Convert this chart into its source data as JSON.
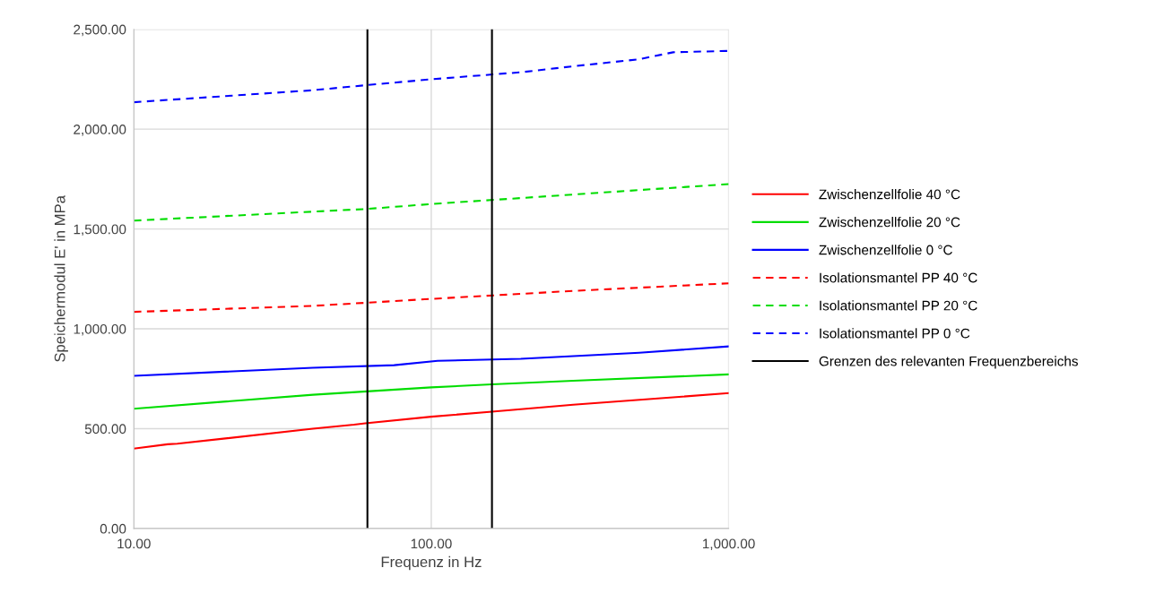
{
  "chart_data": {
    "type": "line",
    "xlabel": "Frequenz in Hz",
    "ylabel": "Speichermodul E' in MPa",
    "log": "x",
    "grid": true,
    "legend": "right",
    "xlim": [
      10,
      1000
    ],
    "xticks": [
      {
        "value": 10,
        "label": "10.00"
      },
      {
        "value": 100,
        "label": "100.00"
      },
      {
        "value": 1000,
        "label": "1,000.00"
      }
    ],
    "ylim": [
      0,
      2500
    ],
    "yticks": [
      {
        "value": 0,
        "label": "0.00"
      },
      {
        "value": 500,
        "label": "500.00"
      },
      {
        "value": 1000,
        "label": "1,000.00"
      },
      {
        "value": 1500,
        "label": "1,500.00"
      },
      {
        "value": 2000,
        "label": "2,000.00"
      },
      {
        "value": 2500,
        "label": "2,500.00"
      }
    ],
    "series": [
      {
        "name": "Zwischenzellfolie 40 °C",
        "color": "#ff0000",
        "line_style": "solid",
        "x": [
          10,
          13,
          14,
          20,
          40,
          55,
          60,
          100,
          160,
          300,
          1000
        ],
        "values": [
          400,
          422,
          425,
          450,
          500,
          520,
          527,
          560,
          585,
          620,
          678
        ]
      },
      {
        "name": "Zwischenzellfolie 20 °C",
        "color": "#00dd00",
        "line_style": "solid",
        "x": [
          10,
          20,
          40,
          100,
          160,
          300,
          1000
        ],
        "values": [
          600,
          635,
          670,
          707,
          722,
          740,
          772
        ]
      },
      {
        "name": "Zwischenzellfolie 0 °C",
        "color": "#0000ff",
        "line_style": "solid",
        "x": [
          10,
          40,
          75,
          105,
          200,
          500,
          1000
        ],
        "values": [
          765,
          805,
          818,
          840,
          850,
          880,
          912
        ]
      },
      {
        "name": "Isolationsmantel PP 40 °C",
        "color": "#ff0000",
        "line_style": "dashed",
        "x": [
          10,
          40,
          100,
          300,
          1000
        ],
        "values": [
          1085,
          1115,
          1150,
          1190,
          1228
        ]
      },
      {
        "name": "Isolationsmantel PP 20 °C",
        "color": "#00dd00",
        "line_style": "dashed",
        "x": [
          10,
          60,
          100,
          1000
        ],
        "values": [
          1542,
          1600,
          1625,
          1725
        ]
      },
      {
        "name": "Isolationsmantel PP 0 °C",
        "color": "#0000ff",
        "line_style": "dashed",
        "x": [
          10,
          40,
          60,
          100,
          200,
          300,
          500,
          650,
          1000
        ],
        "values": [
          2135,
          2195,
          2220,
          2250,
          2285,
          2315,
          2350,
          2385,
          2392
        ]
      },
      {
        "name": "Grenzen des relevanten Frequenzbereichs",
        "color": "#000000",
        "line_style": "solid",
        "x": [
          61,
          61,
          null,
          160,
          160
        ],
        "values": [
          0,
          2500,
          null,
          0,
          2500
        ]
      }
    ]
  }
}
